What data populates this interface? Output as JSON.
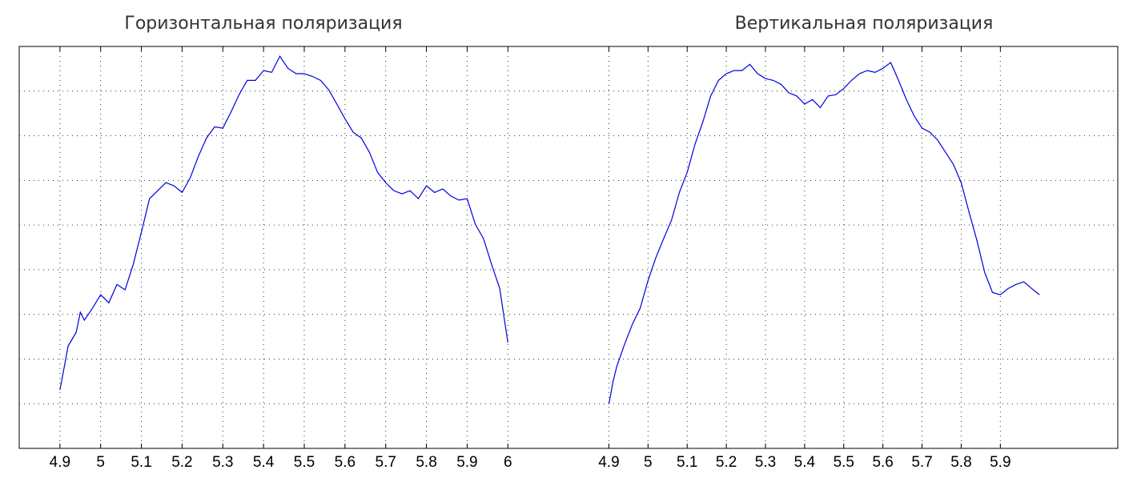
{
  "chart_data": [
    {
      "type": "line",
      "title": "Горизонтальная поляризация",
      "grid": true,
      "xlim": [
        4.8,
        6.2
      ],
      "xticks": [
        4.9,
        5,
        5.1,
        5.2,
        5.3,
        5.4,
        5.5,
        5.6,
        5.7,
        5.8,
        5.9,
        6
      ],
      "ylim": [
        0,
        9
      ],
      "yticks": [
        1,
        2,
        3,
        4,
        5,
        6,
        7,
        8
      ],
      "x": [
        4.9,
        4.91,
        4.92,
        4.94,
        4.95,
        4.96,
        4.98,
        5.0,
        5.02,
        5.04,
        5.06,
        5.08,
        5.1,
        5.12,
        5.14,
        5.16,
        5.18,
        5.2,
        5.22,
        5.24,
        5.26,
        5.28,
        5.3,
        5.32,
        5.34,
        5.36,
        5.38,
        5.4,
        5.42,
        5.44,
        5.46,
        5.48,
        5.5,
        5.52,
        5.54,
        5.56,
        5.58,
        5.6,
        5.62,
        5.64,
        5.66,
        5.68,
        5.7,
        5.72,
        5.74,
        5.76,
        5.78,
        5.8,
        5.82,
        5.84,
        5.86,
        5.88,
        5.9,
        5.92,
        5.94,
        5.96,
        5.98,
        6.0
      ],
      "series": [
        {
          "color": "#0000dd",
          "values": [
            1.31,
            1.79,
            2.29,
            2.6,
            3.05,
            2.87,
            3.14,
            3.44,
            3.26,
            3.67,
            3.55,
            4.12,
            4.84,
            5.59,
            5.77,
            5.95,
            5.88,
            5.73,
            6.06,
            6.54,
            6.95,
            7.2,
            7.17,
            7.53,
            7.92,
            8.24,
            8.24,
            8.46,
            8.42,
            8.78,
            8.51,
            8.39,
            8.39,
            8.33,
            8.24,
            8.03,
            7.71,
            7.38,
            7.08,
            6.95,
            6.63,
            6.18,
            5.95,
            5.77,
            5.7,
            5.77,
            5.59,
            5.88,
            5.73,
            5.81,
            5.65,
            5.56,
            5.59,
            5.02,
            4.7,
            4.12,
            3.58,
            2.37
          ]
        }
      ]
    },
    {
      "type": "line",
      "title": "Вертикальная поляризация",
      "grid": true,
      "xlim": [
        4.85,
        6.2
      ],
      "xticks": [
        4.9,
        5,
        5.1,
        5.2,
        5.3,
        5.4,
        5.5,
        5.6,
        5.7,
        5.8,
        5.9
      ],
      "ylim": [
        0,
        9
      ],
      "yticks": [
        1,
        2,
        3,
        4,
        5,
        6,
        7,
        8
      ],
      "x": [
        4.9,
        4.91,
        4.92,
        4.94,
        4.96,
        4.98,
        5.0,
        5.02,
        5.04,
        5.06,
        5.08,
        5.1,
        5.12,
        5.14,
        5.16,
        5.18,
        5.2,
        5.22,
        5.24,
        5.26,
        5.28,
        5.3,
        5.32,
        5.34,
        5.36,
        5.38,
        5.4,
        5.42,
        5.44,
        5.46,
        5.48,
        5.5,
        5.52,
        5.54,
        5.56,
        5.58,
        5.6,
        5.62,
        5.64,
        5.66,
        5.68,
        5.7,
        5.72,
        5.74,
        5.76,
        5.78,
        5.8,
        5.82,
        5.84,
        5.86,
        5.88,
        5.9,
        5.92,
        5.94,
        5.96,
        5.98,
        6.0
      ],
      "series": [
        {
          "color": "#0000dd",
          "values": [
            0.99,
            1.47,
            1.83,
            2.33,
            2.78,
            3.14,
            3.76,
            4.27,
            4.7,
            5.11,
            5.73,
            6.18,
            6.81,
            7.31,
            7.89,
            8.24,
            8.39,
            8.46,
            8.46,
            8.6,
            8.39,
            8.28,
            8.24,
            8.15,
            7.96,
            7.89,
            7.71,
            7.81,
            7.63,
            7.89,
            7.92,
            8.06,
            8.24,
            8.39,
            8.46,
            8.42,
            8.51,
            8.64,
            8.24,
            7.81,
            7.44,
            7.17,
            7.08,
            6.9,
            6.63,
            6.36,
            5.95,
            5.29,
            4.66,
            3.94,
            3.49,
            3.44,
            3.58,
            3.67,
            3.73,
            3.58,
            3.44
          ]
        }
      ]
    }
  ]
}
